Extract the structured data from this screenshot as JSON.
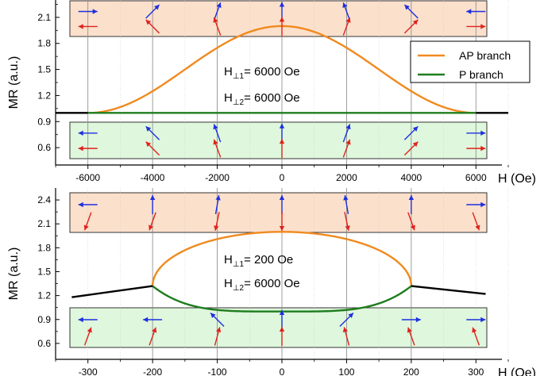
{
  "colors": {
    "ap": "#f08a1e",
    "p": "#1e7d1e",
    "other": "#000000",
    "box_top": "#fbe0cc",
    "box_bottom": "#dff7dc",
    "arrow_blue": "#1d2fe0",
    "arrow_red": "#e0221c",
    "vline": "#888888",
    "grid": "#cccccc"
  },
  "chart_data": [
    {
      "type": "line",
      "xlabel": "H (Oe)",
      "ylabel": "MR (a.u.)",
      "xlim": [
        -7000,
        7000
      ],
      "ylim": [
        0.4,
        2.3
      ],
      "xticks": [
        -6000,
        -4000,
        -2000,
        0,
        2000,
        4000,
        6000
      ],
      "xtick_labels": [
        "-6000",
        "-4000",
        "-2000",
        "0",
        "2000",
        "4000",
        "6000"
      ],
      "yticks": [
        0.6,
        0.9,
        1.2,
        1.5,
        1.8,
        2.1
      ],
      "ytick_labels": [
        "0.6",
        "0.9",
        "1.2",
        "1.5",
        "1.8",
        "2.1"
      ],
      "vlines": [
        -6000,
        -4000,
        -2000,
        0,
        2000,
        4000,
        6000
      ],
      "annotation": [
        {
          "prefix": "H",
          "sub": "⊥1",
          "text": "= 6000  Oe"
        },
        {
          "prefix": "H",
          "sub": "⊥2",
          "text": "= 6000 Oe"
        }
      ],
      "legend": {
        "placement": "top-right",
        "entries": [
          {
            "label": "AP branch",
            "color": "#f08a1e"
          },
          {
            "label": "P branch",
            "color": "#1e7d1e"
          }
        ]
      },
      "series": [
        {
          "kind": "ap_cos",
          "h1": 6000,
          "base": 1.0,
          "amp": 1.0
        },
        {
          "kind": "p_const",
          "h1": 6000,
          "value": 1.0
        },
        {
          "kind": "black_flat",
          "from": -7000,
          "to": 7000,
          "value": 1.0,
          "h1": 6000
        }
      ],
      "arrows_top": [
        {
          "x": -6000,
          "blue": 0,
          "red": 180
        },
        {
          "x": -4000,
          "blue": 45,
          "red": 135
        },
        {
          "x": -2000,
          "blue": 70,
          "red": 110
        },
        {
          "x": 0,
          "blue": 90,
          "red": 90
        },
        {
          "x": 2000,
          "blue": 110,
          "red": 70
        },
        {
          "x": 4000,
          "blue": 135,
          "red": 45
        },
        {
          "x": 6000,
          "blue": 180,
          "red": 0
        }
      ],
      "arrows_bottom": [
        {
          "x": -6000,
          "blue": 180,
          "red": 180
        },
        {
          "x": -4000,
          "blue": 135,
          "red": 135
        },
        {
          "x": -2000,
          "blue": 110,
          "red": 110
        },
        {
          "x": 0,
          "blue": 90,
          "red": 90
        },
        {
          "x": 2000,
          "blue": 70,
          "red": 70
        },
        {
          "x": 4000,
          "blue": 45,
          "red": 45
        },
        {
          "x": 6000,
          "blue": 0,
          "red": 0
        }
      ]
    },
    {
      "type": "line",
      "xlabel": "H (Oe)",
      "ylabel": "MR (a.u.)",
      "xlim": [
        -350,
        350
      ],
      "ylim": [
        0.4,
        2.55
      ],
      "xticks": [
        -300,
        -200,
        -100,
        0,
        100,
        200,
        300
      ],
      "xtick_labels": [
        "-300",
        "-200",
        "-100",
        "0",
        "100",
        "200",
        "300"
      ],
      "yticks": [
        0.6,
        0.9,
        1.2,
        1.5,
        1.8,
        2.1,
        2.4
      ],
      "ytick_labels": [
        "0.6",
        "0.9",
        "1.2",
        "1.5",
        "1.8",
        "2.1",
        "2.4"
      ],
      "vlines": [
        -200,
        -100,
        0,
        100,
        200
      ],
      "annotation": [
        {
          "prefix": "H",
          "sub": "⊥1",
          "text": "= 200  Oe"
        },
        {
          "prefix": "H",
          "sub": "⊥2",
          "text": "= 6000 Oe"
        }
      ],
      "series": [
        {
          "kind": "ap_ellipse",
          "h1": 200,
          "base": 1.32,
          "top": 2.0
        },
        {
          "kind": "p_parabola",
          "h1": 200,
          "edge": 1.32,
          "bottom": 1.0
        },
        {
          "kind": "black_line",
          "points": [
            [
              -325,
              1.18
            ],
            [
              -200,
              1.32
            ]
          ]
        },
        {
          "kind": "black_line",
          "points": [
            [
              200,
              1.32
            ],
            [
              315,
              1.22
            ]
          ]
        }
      ],
      "arrows_top": [
        {
          "x": -300,
          "blue": 180,
          "red": 250
        },
        {
          "x": -200,
          "blue": 90,
          "red": 250
        },
        {
          "x": -100,
          "blue": 80,
          "red": 258
        },
        {
          "x": 0,
          "blue": 90,
          "red": 270
        },
        {
          "x": 100,
          "blue": 100,
          "red": 282
        },
        {
          "x": 200,
          "blue": 90,
          "red": 290
        },
        {
          "x": 300,
          "blue": 0,
          "red": 290
        }
      ],
      "arrows_bottom": [
        {
          "x": -300,
          "blue": 180,
          "red": 70
        },
        {
          "x": -200,
          "blue": 180,
          "red": 70
        },
        {
          "x": -100,
          "blue": 135,
          "red": 75
        },
        {
          "x": 0,
          "blue": 90,
          "red": 90
        },
        {
          "x": 100,
          "blue": 45,
          "red": 105
        },
        {
          "x": 200,
          "blue": 0,
          "red": 110
        },
        {
          "x": 300,
          "blue": 0,
          "red": 110
        }
      ]
    }
  ]
}
